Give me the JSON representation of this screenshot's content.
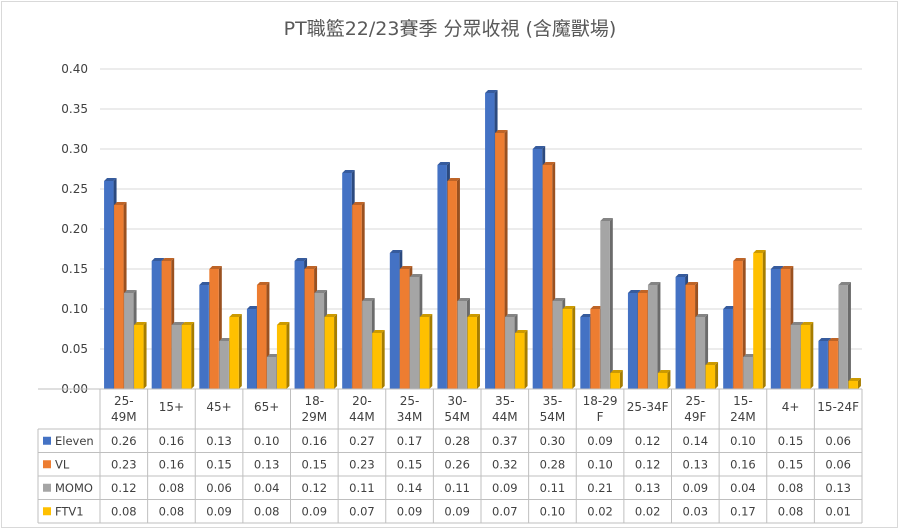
{
  "chart_data": {
    "type": "bar",
    "title": "PT職籃22/23賽季 分眾收視 (含魔獸場)",
    "categories": [
      [
        "25-",
        "49M"
      ],
      [
        "15+"
      ],
      [
        "45+"
      ],
      [
        "65+"
      ],
      [
        "18-",
        "29M"
      ],
      [
        "20-",
        "44M"
      ],
      [
        "25-",
        "34M"
      ],
      [
        "30-",
        "54M"
      ],
      [
        "35-",
        "44M"
      ],
      [
        "35-",
        "54M"
      ],
      [
        "18-29",
        "F"
      ],
      [
        "25-34F"
      ],
      [
        "25-",
        "49F"
      ],
      [
        "15-",
        "24M"
      ],
      [
        "4+"
      ],
      [
        "15-24F"
      ]
    ],
    "series": [
      {
        "name": "Eleven",
        "color": "#4472c4",
        "values": [
          0.26,
          0.16,
          0.13,
          0.1,
          0.16,
          0.27,
          0.17,
          0.28,
          0.37,
          0.3,
          0.09,
          0.12,
          0.14,
          0.1,
          0.15,
          0.06
        ]
      },
      {
        "name": "VL",
        "color": "#ed7d31",
        "values": [
          0.23,
          0.16,
          0.15,
          0.13,
          0.15,
          0.23,
          0.15,
          0.26,
          0.32,
          0.28,
          0.1,
          0.12,
          0.13,
          0.16,
          0.15,
          0.06
        ]
      },
      {
        "name": "MOMO",
        "color": "#a5a5a5",
        "values": [
          0.12,
          0.08,
          0.06,
          0.04,
          0.12,
          0.11,
          0.14,
          0.11,
          0.09,
          0.11,
          0.21,
          0.13,
          0.09,
          0.04,
          0.08,
          0.13
        ]
      },
      {
        "name": "FTV1",
        "color": "#ffc000",
        "values": [
          0.08,
          0.08,
          0.09,
          0.08,
          0.09,
          0.07,
          0.09,
          0.09,
          0.07,
          0.1,
          0.02,
          0.02,
          0.03,
          0.17,
          0.08,
          0.01
        ]
      }
    ],
    "ylim": [
      0,
      0.4
    ],
    "yticks": [
      "0.00",
      "0.05",
      "0.10",
      "0.15",
      "0.20",
      "0.25",
      "0.30",
      "0.35",
      "0.40"
    ],
    "grid": true,
    "legend": "data-table"
  }
}
